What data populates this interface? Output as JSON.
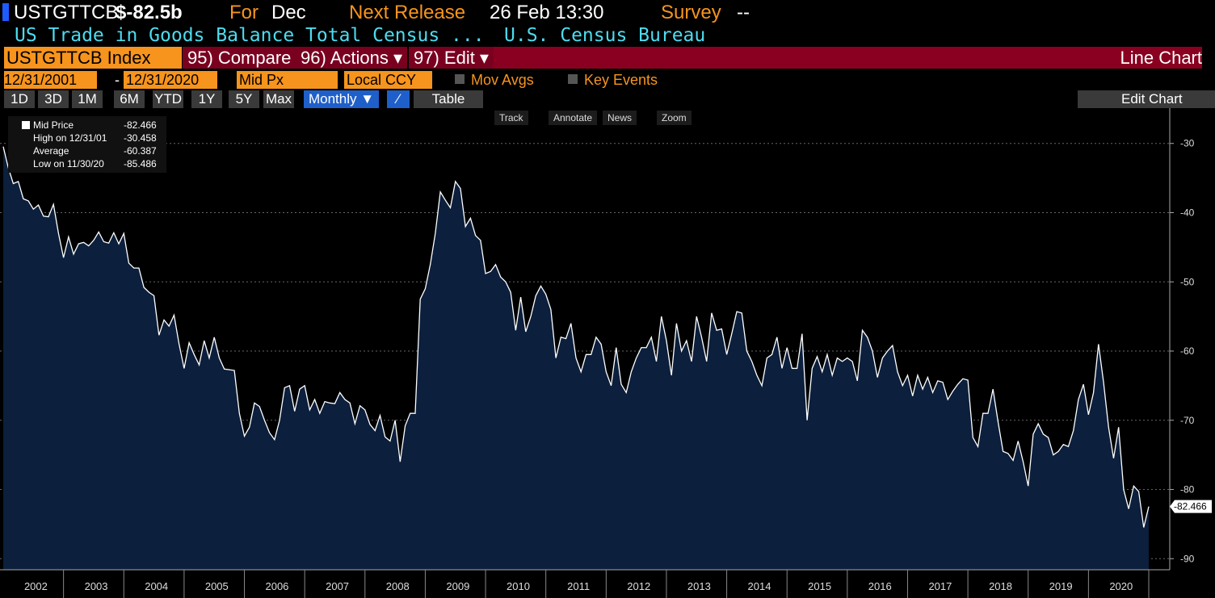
{
  "ui": {
    "ticker": "USTGTTCB",
    "last": "$-82.5b",
    "for_label": "For",
    "for_value": "Dec",
    "release_label": "Next Release",
    "release_value": "26 Feb 13:30",
    "survey_label": "Survey",
    "survey_value": "--",
    "description": "US Trade in Goods Balance Total Census ...",
    "source": "U.S. Census Bureau",
    "security": "USTGTTCB Index",
    "compare": "95) Compare",
    "actions": "96) Actions ▾",
    "edit": "97) Edit ▾",
    "chart_kind": "Line Chart",
    "start_date": "12/31/2001",
    "date_sep": "-",
    "end_date": "12/31/2020",
    "field": "Mid Px",
    "currency": "Local CCY",
    "mov_avgs": "Mov Avgs",
    "key_events": "Key Events",
    "periods": [
      "1D",
      "3D",
      "1M",
      "6M",
      "YTD",
      "1Y",
      "5Y",
      "Max"
    ],
    "frequency": "Monthly ▼",
    "table": "Table",
    "edit_chart": "Edit Chart",
    "tools": [
      "Track",
      "Annotate",
      "News",
      "Zoom"
    ]
  },
  "chart_data": {
    "type": "area",
    "series_name": "Mid Price",
    "color": "#ffffff",
    "fill": "#0c1f3d",
    "legend": [
      {
        "label": "Mid Price",
        "value": -82.466
      },
      {
        "label": "High on 12/31/01",
        "value": -30.458
      },
      {
        "label": "Average",
        "value": -60.387
      },
      {
        "label": "Low on 11/30/20",
        "value": -85.486
      }
    ],
    "values": [
      -30.458,
      -33.5,
      -35.8,
      -35.5,
      -38.0,
      -38.3,
      -39.5,
      -38.9,
      -40.5,
      -40.6,
      -38.8,
      -43.0,
      -46.5,
      -43.5,
      -46.0,
      -44.5,
      -44.3,
      -44.8,
      -44.0,
      -42.8,
      -44.2,
      -44.4,
      -42.9,
      -44.5,
      -43.0,
      -47.3,
      -48.0,
      -48.0,
      -50.8,
      -51.5,
      -52.0,
      -57.7,
      -55.5,
      -56.4,
      -54.8,
      -59.0,
      -62.5,
      -58.8,
      -60.5,
      -62.0,
      -58.5,
      -61.0,
      -58.0,
      -61.0,
      -62.6,
      -62.7,
      -62.8,
      -69.0,
      -72.3,
      -71.0,
      -67.5,
      -68.0,
      -70.0,
      -71.8,
      -72.8,
      -70.0,
      -65.3,
      -65.0,
      -68.7,
      -65.5,
      -65.0,
      -68.5,
      -67.0,
      -69.0,
      -67.3,
      -67.5,
      -67.6,
      -66.0,
      -67.0,
      -67.5,
      -70.5,
      -67.9,
      -68.5,
      -70.6,
      -71.5,
      -69.3,
      -72.4,
      -73.0,
      -70.0,
      -76.0,
      -70.8,
      -69.0,
      -69.0,
      -52.5,
      -51.0,
      -47.5,
      -43.0,
      -37.0,
      -38.2,
      -39.3,
      -35.5,
      -36.5,
      -42.0,
      -40.8,
      -43.3,
      -44.0,
      -48.8,
      -48.5,
      -47.5,
      -49.3,
      -50.0,
      -51.5,
      -57.0,
      -52.2,
      -57.2,
      -55.0,
      -52.0,
      -50.6,
      -51.8,
      -54.0,
      -61.0,
      -58.0,
      -58.2,
      -56.0,
      -61.0,
      -63.0,
      -60.5,
      -60.5,
      -58.0,
      -59.0,
      -63.0,
      -65.0,
      -59.5,
      -64.8,
      -66.0,
      -63.0,
      -61.0,
      -59.5,
      -59.5,
      -58.0,
      -61.5,
      -55.0,
      -58.5,
      -63.5,
      -56.0,
      -60.0,
      -58.5,
      -61.5,
      -55.0,
      -58.0,
      -61.5,
      -54.5,
      -57.0,
      -56.8,
      -60.5,
      -57.5,
      -54.3,
      -54.5,
      -60.0,
      -61.5,
      -63.5,
      -65.0,
      -61.0,
      -60.5,
      -58.0,
      -62.5,
      -59.5,
      -62.5,
      -62.5,
      -57.5,
      -70.0,
      -62.5,
      -60.8,
      -63.0,
      -60.5,
      -63.5,
      -61.0,
      -61.5,
      -61.0,
      -61.5,
      -64.3,
      -57.0,
      -58.0,
      -60.0,
      -63.8,
      -61.0,
      -60.0,
      -59.2,
      -63.0,
      -65.0,
      -63.5,
      -66.5,
      -63.5,
      -65.5,
      -63.8,
      -66.0,
      -64.3,
      -64.5,
      -67.0,
      -65.8,
      -64.8,
      -64.0,
      -64.2,
      -72.5,
      -73.8,
      -69.0,
      -69.0,
      -65.5,
      -70.2,
      -74.5,
      -74.8,
      -75.8,
      -73.0,
      -76.0,
      -79.5,
      -72.0,
      -70.5,
      -72.0,
      -72.5,
      -75.0,
      -74.5,
      -73.5,
      -73.8,
      -71.5,
      -67.0,
      -64.8,
      -69.2,
      -66.0,
      -59.0,
      -64.5,
      -71.0,
      -75.5,
      -71.0,
      -80.0,
      -82.8,
      -79.5,
      -80.3,
      -85.486,
      -82.466
    ],
    "ylim": [
      -91.6,
      -24.9
    ],
    "yticks": [
      -90,
      -80,
      -70,
      -60,
      -50,
      -40,
      -30
    ],
    "xticks": [
      2002,
      2003,
      2004,
      2005,
      2006,
      2007,
      2008,
      2009,
      2010,
      2011,
      2012,
      2013,
      2014,
      2015,
      2016,
      2017,
      2018,
      2019,
      2020
    ],
    "grid": true
  }
}
